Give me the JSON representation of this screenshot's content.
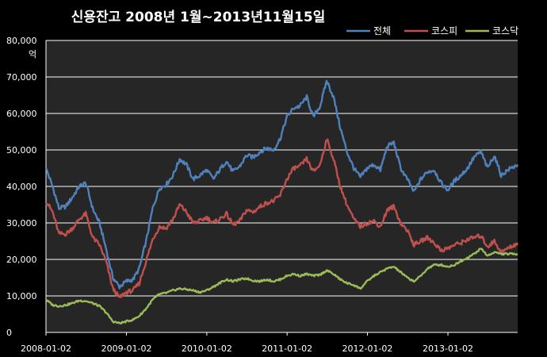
{
  "chart_data": {
    "type": "line",
    "title": "신용잔고 2008년 1월~2013년11월15일",
    "unit_label": "억",
    "ylim": [
      0,
      80000
    ],
    "y_ticks": [
      "0",
      "10,000",
      "20,000",
      "30,000",
      "40,000",
      "50,000",
      "60,000",
      "70,000",
      "80,000"
    ],
    "x_ticks": [
      "2008-01-02",
      "2009-01-02",
      "2010-01-02",
      "2011-01-02",
      "2012-01-02",
      "2013-01-02"
    ],
    "xlim": [
      "2008-01-02",
      "2013-11-15"
    ],
    "grid": true,
    "legend_position": "top-right",
    "series": [
      {
        "name": "전체",
        "color": "#4f81bd",
        "points": [
          [
            "2008-01-02",
            45000
          ],
          [
            "2008-02-01",
            40000
          ],
          [
            "2008-03-01",
            34000
          ],
          [
            "2008-04-01",
            34500
          ],
          [
            "2008-05-01",
            37000
          ],
          [
            "2008-06-01",
            40000
          ],
          [
            "2008-07-01",
            41000
          ],
          [
            "2008-08-01",
            34000
          ],
          [
            "2008-09-01",
            30000
          ],
          [
            "2008-10-01",
            23000
          ],
          [
            "2008-11-01",
            15000
          ],
          [
            "2008-12-01",
            12500
          ],
          [
            "2009-01-01",
            14000
          ],
          [
            "2009-02-01",
            14500
          ],
          [
            "2009-03-01",
            17500
          ],
          [
            "2009-04-01",
            25000
          ],
          [
            "2009-05-01",
            34000
          ],
          [
            "2009-06-01",
            39500
          ],
          [
            "2009-07-01",
            40500
          ],
          [
            "2009-08-01",
            43000
          ],
          [
            "2009-09-01",
            47500
          ],
          [
            "2009-10-01",
            46000
          ],
          [
            "2009-11-01",
            42000
          ],
          [
            "2009-12-01",
            43000
          ],
          [
            "2010-01-01",
            44500
          ],
          [
            "2010-02-01",
            42000
          ],
          [
            "2010-03-01",
            44500
          ],
          [
            "2010-04-01",
            47000
          ],
          [
            "2010-05-01",
            44000
          ],
          [
            "2010-06-01",
            45500
          ],
          [
            "2010-07-01",
            48500
          ],
          [
            "2010-08-01",
            48000
          ],
          [
            "2010-09-01",
            49500
          ],
          [
            "2010-10-01",
            50500
          ],
          [
            "2010-11-01",
            50000
          ],
          [
            "2010-12-01",
            53000
          ],
          [
            "2011-01-01",
            59000
          ],
          [
            "2011-02-01",
            61500
          ],
          [
            "2011-03-01",
            62000
          ],
          [
            "2011-04-01",
            64500
          ],
          [
            "2011-05-01",
            59000
          ],
          [
            "2011-06-01",
            62000
          ],
          [
            "2011-07-01",
            69000
          ],
          [
            "2011-08-01",
            64500
          ],
          [
            "2011-09-01",
            56000
          ],
          [
            "2011-10-01",
            49500
          ],
          [
            "2011-11-01",
            45000
          ],
          [
            "2011-12-01",
            42500
          ],
          [
            "2012-01-01",
            45000
          ],
          [
            "2012-02-01",
            46000
          ],
          [
            "2012-03-01",
            44500
          ],
          [
            "2012-04-01",
            51000
          ],
          [
            "2012-05-01",
            52000
          ],
          [
            "2012-06-01",
            45000
          ],
          [
            "2012-07-01",
            42000
          ],
          [
            "2012-08-01",
            38500
          ],
          [
            "2012-09-01",
            42000
          ],
          [
            "2012-10-01",
            44000
          ],
          [
            "2012-11-01",
            44500
          ],
          [
            "2012-12-01",
            41000
          ],
          [
            "2013-01-01",
            39000
          ],
          [
            "2013-02-01",
            41500
          ],
          [
            "2013-03-01",
            43000
          ],
          [
            "2013-04-01",
            45000
          ],
          [
            "2013-05-01",
            48000
          ],
          [
            "2013-06-01",
            49500
          ],
          [
            "2013-07-01",
            45000
          ],
          [
            "2013-08-01",
            48500
          ],
          [
            "2013-09-01",
            43000
          ],
          [
            "2013-10-01",
            44500
          ],
          [
            "2013-11-15",
            46000
          ]
        ]
      },
      {
        "name": "코스피",
        "color": "#c0504d",
        "points": [
          [
            "2008-01-02",
            36000
          ],
          [
            "2008-02-01",
            33000
          ],
          [
            "2008-03-01",
            27000
          ],
          [
            "2008-04-01",
            27000
          ],
          [
            "2008-05-01",
            28500
          ],
          [
            "2008-06-01",
            31000
          ],
          [
            "2008-07-01",
            32500
          ],
          [
            "2008-08-01",
            26000
          ],
          [
            "2008-09-01",
            24000
          ],
          [
            "2008-10-01",
            19500
          ],
          [
            "2008-11-01",
            12000
          ],
          [
            "2008-12-01",
            9500
          ],
          [
            "2009-01-01",
            11000
          ],
          [
            "2009-02-01",
            11500
          ],
          [
            "2009-03-01",
            13500
          ],
          [
            "2009-04-01",
            19500
          ],
          [
            "2009-05-01",
            25500
          ],
          [
            "2009-06-01",
            29000
          ],
          [
            "2009-07-01",
            28500
          ],
          [
            "2009-08-01",
            31000
          ],
          [
            "2009-09-01",
            35000
          ],
          [
            "2009-10-01",
            33000
          ],
          [
            "2009-11-01",
            30000
          ],
          [
            "2009-12-01",
            30500
          ],
          [
            "2010-01-01",
            31500
          ],
          [
            "2010-02-01",
            30000
          ],
          [
            "2010-03-01",
            31000
          ],
          [
            "2010-04-01",
            32500
          ],
          [
            "2010-05-01",
            29500
          ],
          [
            "2010-06-01",
            30500
          ],
          [
            "2010-07-01",
            33500
          ],
          [
            "2010-08-01",
            33000
          ],
          [
            "2010-09-01",
            34500
          ],
          [
            "2010-10-01",
            35500
          ],
          [
            "2010-11-01",
            36000
          ],
          [
            "2010-12-01",
            37500
          ],
          [
            "2011-01-01",
            42000
          ],
          [
            "2011-02-01",
            45000
          ],
          [
            "2011-03-01",
            45500
          ],
          [
            "2011-04-01",
            47500
          ],
          [
            "2011-05-01",
            44000
          ],
          [
            "2011-06-01",
            46000
          ],
          [
            "2011-07-01",
            53000
          ],
          [
            "2011-08-01",
            47500
          ],
          [
            "2011-09-01",
            40000
          ],
          [
            "2011-10-01",
            35000
          ],
          [
            "2011-11-01",
            31000
          ],
          [
            "2011-12-01",
            29000
          ],
          [
            "2012-01-01",
            30000
          ],
          [
            "2012-02-01",
            30500
          ],
          [
            "2012-03-01",
            29000
          ],
          [
            "2012-04-01",
            33500
          ],
          [
            "2012-05-01",
            34500
          ],
          [
            "2012-06-01",
            30000
          ],
          [
            "2012-07-01",
            28000
          ],
          [
            "2012-08-01",
            24000
          ],
          [
            "2012-09-01",
            25000
          ],
          [
            "2012-10-01",
            26000
          ],
          [
            "2012-11-01",
            24500
          ],
          [
            "2012-12-01",
            22500
          ],
          [
            "2013-01-01",
            23000
          ],
          [
            "2013-02-01",
            24000
          ],
          [
            "2013-03-01",
            24500
          ],
          [
            "2013-04-01",
            25500
          ],
          [
            "2013-05-01",
            26000
          ],
          [
            "2013-06-01",
            26500
          ],
          [
            "2013-07-01",
            23500
          ],
          [
            "2013-08-01",
            25000
          ],
          [
            "2013-09-01",
            22000
          ],
          [
            "2013-10-01",
            23000
          ],
          [
            "2013-11-15",
            24500
          ]
        ]
      },
      {
        "name": "코스닥",
        "color": "#9bbb59",
        "points": [
          [
            "2008-01-02",
            9000
          ],
          [
            "2008-02-01",
            7500
          ],
          [
            "2008-03-01",
            7200
          ],
          [
            "2008-04-01",
            7500
          ],
          [
            "2008-05-01",
            8000
          ],
          [
            "2008-06-01",
            8700
          ],
          [
            "2008-07-01",
            8600
          ],
          [
            "2008-08-01",
            8000
          ],
          [
            "2008-09-01",
            7200
          ],
          [
            "2008-10-01",
            5500
          ],
          [
            "2008-11-01",
            3000
          ],
          [
            "2008-12-01",
            2500
          ],
          [
            "2009-01-01",
            3000
          ],
          [
            "2009-02-01",
            3500
          ],
          [
            "2009-03-01",
            4500
          ],
          [
            "2009-04-01",
            6500
          ],
          [
            "2009-05-01",
            9000
          ],
          [
            "2009-06-01",
            10500
          ],
          [
            "2009-07-01",
            10800
          ],
          [
            "2009-08-01",
            11500
          ],
          [
            "2009-09-01",
            12000
          ],
          [
            "2009-10-01",
            11800
          ],
          [
            "2009-11-01",
            11500
          ],
          [
            "2009-12-01",
            11000
          ],
          [
            "2010-01-01",
            11500
          ],
          [
            "2010-02-01",
            12500
          ],
          [
            "2010-03-01",
            13500
          ],
          [
            "2010-04-01",
            14500
          ],
          [
            "2010-05-01",
            14000
          ],
          [
            "2010-06-01",
            14500
          ],
          [
            "2010-07-01",
            14800
          ],
          [
            "2010-08-01",
            14200
          ],
          [
            "2010-09-01",
            14000
          ],
          [
            "2010-10-01",
            14500
          ],
          [
            "2010-11-01",
            14000
          ],
          [
            "2010-12-01",
            14500
          ],
          [
            "2011-01-01",
            15500
          ],
          [
            "2011-02-01",
            16000
          ],
          [
            "2011-03-01",
            15500
          ],
          [
            "2011-04-01",
            16000
          ],
          [
            "2011-05-01",
            15500
          ],
          [
            "2011-06-01",
            15800
          ],
          [
            "2011-07-01",
            17000
          ],
          [
            "2011-08-01",
            16000
          ],
          [
            "2011-09-01",
            14500
          ],
          [
            "2011-10-01",
            13500
          ],
          [
            "2011-11-01",
            13000
          ],
          [
            "2011-12-01",
            12000
          ],
          [
            "2012-01-01",
            14000
          ],
          [
            "2012-02-01",
            15500
          ],
          [
            "2012-03-01",
            16500
          ],
          [
            "2012-04-01",
            17500
          ],
          [
            "2012-05-01",
            18000
          ],
          [
            "2012-06-01",
            16500
          ],
          [
            "2012-07-01",
            15000
          ],
          [
            "2012-08-01",
            14000
          ],
          [
            "2012-09-01",
            15500
          ],
          [
            "2012-10-01",
            17500
          ],
          [
            "2012-11-01",
            18500
          ],
          [
            "2012-12-01",
            18500
          ],
          [
            "2013-01-01",
            18000
          ],
          [
            "2013-02-01",
            18500
          ],
          [
            "2013-03-01",
            19500
          ],
          [
            "2013-04-01",
            20500
          ],
          [
            "2013-05-01",
            21500
          ],
          [
            "2013-06-01",
            23000
          ],
          [
            "2013-07-01",
            21000
          ],
          [
            "2013-08-01",
            22000
          ],
          [
            "2013-09-01",
            21500
          ],
          [
            "2013-10-01",
            21500
          ],
          [
            "2013-11-15",
            21500
          ]
        ]
      }
    ]
  }
}
